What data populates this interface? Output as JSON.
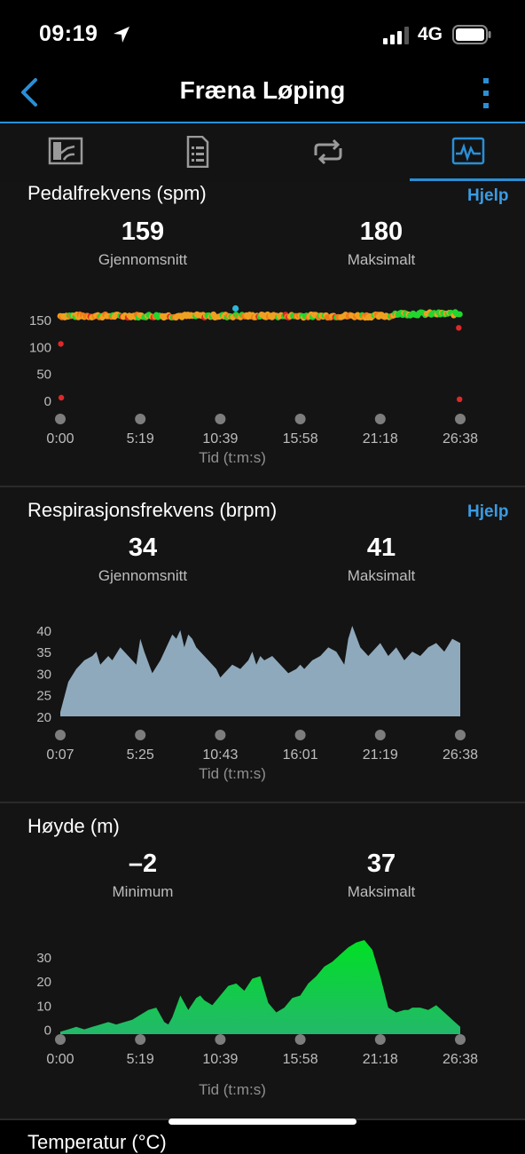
{
  "status_bar": {
    "time": "09:19",
    "network": "4G"
  },
  "nav": {
    "title": "Fræna Løping"
  },
  "tabs": [
    {
      "name": "overview",
      "icon": "gauge-chart-icon"
    },
    {
      "name": "details",
      "icon": "document-list-icon"
    },
    {
      "name": "laps",
      "icon": "loop-arrows-icon"
    },
    {
      "name": "charts",
      "icon": "activity-chart-icon",
      "active": true
    }
  ],
  "colors": {
    "accent": "#2a8fd6",
    "background": "#141414",
    "respiration_fill": "#8fa9bc",
    "elevation_fill": "#1fcc4a"
  },
  "cadence": {
    "title": "Pedalfrekvens (spm)",
    "help": "Hjelp",
    "avg_value": "159",
    "avg_label": "Gjennomsnitt",
    "max_value": "180",
    "max_label": "Maksimalt",
    "axis_label": "Tid (t:m:s)"
  },
  "respiration": {
    "title": "Respirasjonsfrekvens (brpm)",
    "help": "Hjelp",
    "avg_value": "34",
    "avg_label": "Gjennomsnitt",
    "max_value": "41",
    "max_label": "Maksimalt",
    "axis_label": "Tid (t:m:s)"
  },
  "elevation": {
    "title": "Høyde (m)",
    "min_value": "–2",
    "min_label": "Minimum",
    "max_value": "37",
    "max_label": "Maksimalt",
    "axis_label": "Tid (t:m:s)"
  },
  "next_section": {
    "title": "Temperatur (°C)"
  },
  "chart_data": [
    {
      "type": "scatter",
      "title": "Pedalfrekvens (spm)",
      "xlabel": "Tid (t:m:s)",
      "x_ticks": [
        "0:00",
        "5:19",
        "10:39",
        "15:58",
        "21:18",
        "26:38"
      ],
      "y_ticks": [
        0,
        50,
        100,
        150
      ],
      "ylim": [
        0,
        185
      ],
      "xlim_seconds": [
        0,
        1598
      ],
      "typical_cadence": 157,
      "colors": {
        "high": "#22d62e",
        "normal": "#f0a020",
        "elevated": "#f07a18",
        "low": "#e02828",
        "peak": "#2bb8d8"
      },
      "outliers": [
        {
          "x": 2,
          "y": 105
        },
        {
          "x": 4,
          "y": 5
        },
        {
          "x": 1592,
          "y": 135
        },
        {
          "x": 1595,
          "y": 2
        }
      ]
    },
    {
      "type": "area",
      "title": "Respirasjonsfrekvens (brpm)",
      "xlabel": "Tid (t:m:s)",
      "x_ticks": [
        "0:07",
        "5:25",
        "10:43",
        "16:01",
        "21:19",
        "26:38"
      ],
      "y_ticks": [
        20,
        25,
        30,
        35,
        40
      ],
      "ylim": [
        20,
        41
      ],
      "x": [
        0,
        2,
        4,
        6,
        8,
        9,
        10,
        11,
        12,
        13,
        15,
        17,
        19,
        20,
        21,
        23,
        25,
        27,
        28,
        29,
        30,
        31,
        32,
        33,
        34,
        35,
        37,
        39,
        40,
        41,
        43,
        45,
        47,
        48,
        49,
        50,
        51,
        53,
        55,
        57,
        59,
        60,
        61,
        63,
        65,
        67,
        69,
        71,
        72,
        73,
        75,
        77,
        78,
        80,
        82,
        84,
        86,
        88,
        90,
        92,
        94,
        96,
        98,
        100
      ],
      "values": [
        21,
        28,
        31,
        33,
        34,
        35,
        32,
        33,
        34,
        33,
        36,
        34,
        32,
        38,
        35,
        30,
        33,
        37,
        39,
        38,
        40,
        36,
        39,
        38,
        36,
        35,
        33,
        31,
        29,
        30,
        32,
        31,
        33,
        35,
        32,
        34,
        33,
        34,
        32,
        30,
        31,
        32,
        31,
        33,
        34,
        36,
        35,
        32,
        38,
        41,
        36,
        34,
        35,
        37,
        34,
        36,
        33,
        35,
        34,
        36,
        37,
        35,
        38,
        37
      ],
      "x_unit": "percent of duration"
    },
    {
      "type": "area",
      "title": "Høyde (m)",
      "xlabel": "Tid (t:m:s)",
      "x_ticks": [
        "0:00",
        "5:19",
        "10:39",
        "15:58",
        "21:18",
        "26:38"
      ],
      "y_ticks": [
        0,
        10,
        20,
        30
      ],
      "ylim": [
        -2,
        37
      ],
      "x": [
        0,
        2,
        4,
        6,
        8,
        10,
        12,
        14,
        16,
        18,
        20,
        22,
        24,
        26,
        27,
        28,
        30,
        32,
        34,
        35,
        36,
        38,
        40,
        42,
        44,
        46,
        48,
        50,
        52,
        54,
        56,
        58,
        60,
        62,
        64,
        66,
        68,
        70,
        72,
        74,
        76,
        78,
        80,
        82,
        84,
        86,
        87,
        88,
        90,
        92,
        94,
        96,
        98,
        100
      ],
      "values": [
        -1,
        0,
        1,
        0,
        1,
        2,
        3,
        2,
        3,
        4,
        6,
        8,
        9,
        3,
        2,
        5,
        14,
        8,
        13,
        14,
        12,
        10,
        14,
        18,
        19,
        16,
        21,
        22,
        11,
        7,
        9,
        13,
        14,
        19,
        22,
        26,
        28,
        31,
        34,
        36,
        37,
        33,
        22,
        9,
        7,
        8,
        8,
        9,
        9,
        8,
        10,
        7,
        4,
        1
      ],
      "x_unit": "percent of duration"
    }
  ]
}
